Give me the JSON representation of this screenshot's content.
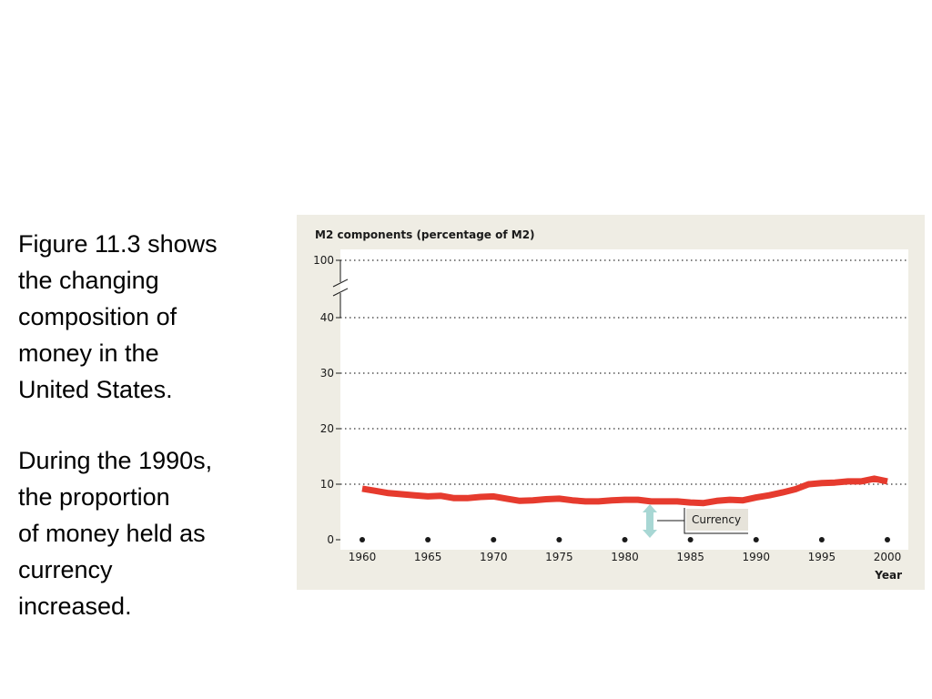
{
  "slide": {
    "paragraph1": [
      "Figure 11.3  shows",
      "the changing",
      "composition of",
      "money in the",
      "United States."
    ],
    "paragraph2": [
      "During the 1990s,",
      "the proportion",
      "of money held as",
      "currency",
      "increased."
    ]
  },
  "chart_data": {
    "type": "line",
    "title": "M2 components (percentage of M2)",
    "xlabel": "Year",
    "ylabel": "",
    "x_ticks": [
      "1960",
      "1965",
      "1970",
      "1975",
      "1980",
      "1985",
      "1990",
      "1995",
      "2000"
    ],
    "y_ticks": [
      "0",
      "10",
      "20",
      "30",
      "40",
      "100"
    ],
    "ylim": [
      0,
      100
    ],
    "axis_break": "between 40 and 100",
    "grid": "dotted horizontal lines",
    "annotation": "Currency",
    "series": [
      {
        "name": "Currency",
        "color": "#e63b2e",
        "x": [
          1960,
          1961,
          1962,
          1963,
          1964,
          1965,
          1966,
          1967,
          1968,
          1969,
          1970,
          1971,
          1972,
          1973,
          1974,
          1975,
          1976,
          1977,
          1978,
          1979,
          1980,
          1981,
          1982,
          1983,
          1984,
          1985,
          1986,
          1987,
          1988,
          1989,
          1990,
          1991,
          1992,
          1993,
          1994,
          1995,
          1996,
          1997,
          1998,
          1999,
          2000
        ],
        "values": [
          9.2,
          8.8,
          8.4,
          8.2,
          8.0,
          7.8,
          7.9,
          7.5,
          7.5,
          7.7,
          7.8,
          7.4,
          7.0,
          7.1,
          7.3,
          7.4,
          7.1,
          6.9,
          6.9,
          7.1,
          7.2,
          7.2,
          6.9,
          6.9,
          6.9,
          6.7,
          6.6,
          7.0,
          7.2,
          7.1,
          7.6,
          8.0,
          8.5,
          9.1,
          10.0,
          10.2,
          10.3,
          10.5,
          10.5,
          11.0,
          10.5
        ]
      }
    ]
  }
}
